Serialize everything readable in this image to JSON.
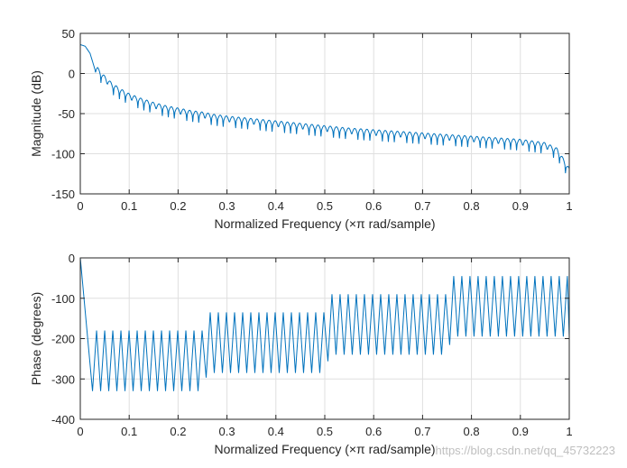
{
  "watermark": "https://blog.csdn.net/qq_45732223",
  "chart_data": [
    {
      "type": "line",
      "xlabel": "Normalized Frequency  (×π rad/sample)",
      "ylabel": "Magnitude (dB)",
      "xlim": [
        0,
        1
      ],
      "ylim": [
        -150,
        50
      ],
      "xticks": [
        0,
        0.1,
        0.2,
        0.3,
        0.4,
        0.5,
        0.6,
        0.7,
        0.8,
        0.9,
        1
      ],
      "xtick_labels": [
        "0",
        "0.1",
        "0.2",
        "0.3",
        "0.4",
        "0.5",
        "0.6",
        "0.7",
        "0.8",
        "0.9",
        "1"
      ],
      "yticks": [
        50,
        0,
        -50,
        -100,
        -150
      ],
      "ytick_labels": [
        "50",
        "0",
        "-50",
        "-100",
        "-150"
      ],
      "grid": true,
      "line_color": "#0072BD",
      "series": [
        {
          "x": [
            0,
            0.01,
            0.02,
            0.03,
            0.035,
            0.045,
            0.055,
            0.065,
            0.075,
            0.085,
            0.1,
            0.125,
            0.15,
            0.175,
            0.2,
            0.225,
            0.25,
            0.275,
            0.3,
            0.35,
            0.4,
            0.45,
            0.5,
            0.55,
            0.6,
            0.65,
            0.7,
            0.75,
            0.8,
            0.85,
            0.9,
            0.95,
            0.975,
            1
          ],
          "values": [
            36,
            34,
            25,
            5,
            6,
            -2,
            -8,
            -14,
            -18,
            -22,
            -27,
            -33,
            -38,
            -42,
            -45,
            -48,
            -50,
            -53,
            -55,
            -58,
            -61,
            -64,
            -67,
            -70,
            -72,
            -74,
            -76,
            -78,
            -80,
            -82,
            -84,
            -88,
            -95,
            -120
          ]
        }
      ]
    },
    {
      "type": "line",
      "xlabel": "Normalized Frequency  (×π rad/sample)",
      "ylabel": "Phase (degrees)",
      "xlim": [
        0,
        1
      ],
      "ylim": [
        -400,
        0
      ],
      "xticks": [
        0,
        0.1,
        0.2,
        0.3,
        0.4,
        0.5,
        0.6,
        0.7,
        0.8,
        0.9,
        1
      ],
      "xtick_labels": [
        "0",
        "0.1",
        "0.2",
        "0.3",
        "0.4",
        "0.5",
        "0.6",
        "0.7",
        "0.8",
        "0.9",
        "1"
      ],
      "yticks": [
        0,
        -100,
        -200,
        -300,
        -400
      ],
      "ytick_labels": [
        "0",
        "-100",
        "-200",
        "-300",
        "-400"
      ],
      "grid": true,
      "line_color": "#0072BD",
      "series": [
        {
          "x": [
            0,
            0.025,
            0.25,
            0.26,
            0.5,
            0.51,
            0.75,
            0.76,
            1
          ],
          "upper": [
            0,
            -180,
            -180,
            -135,
            -135,
            -90,
            -90,
            -45,
            -45
          ],
          "lower": [
            0,
            -330,
            -330,
            -285,
            -285,
            -240,
            -240,
            -195,
            -195
          ]
        }
      ]
    }
  ]
}
